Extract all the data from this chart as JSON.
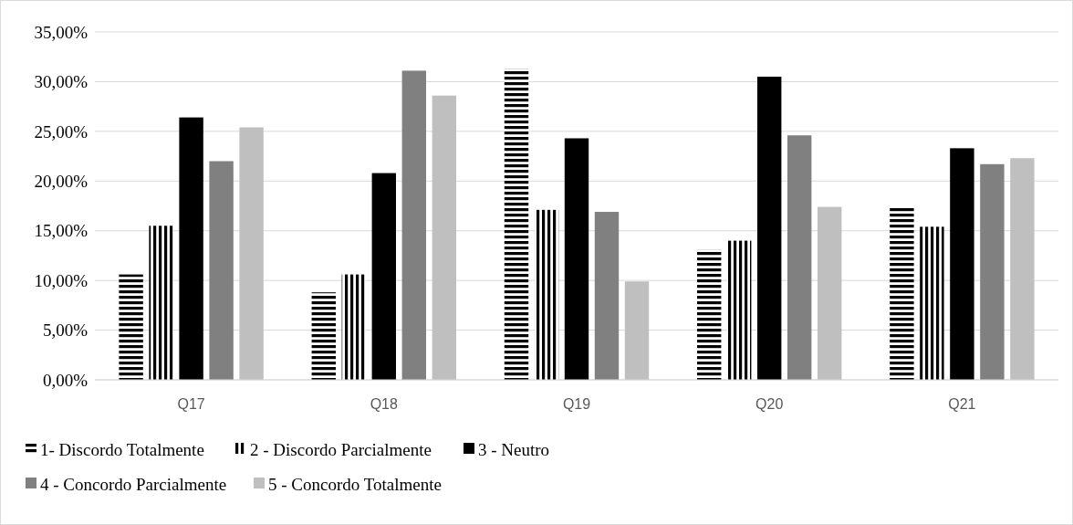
{
  "chart_data": {
    "type": "bar",
    "categories": [
      "Q17",
      "Q18",
      "Q19",
      "Q20",
      "Q21"
    ],
    "series": [
      {
        "name": "1- Discordo Totalmente",
        "color": "#000000",
        "values": [
          10.6,
          8.8,
          31.3,
          13.1,
          17.3
        ]
      },
      {
        "name": "2 - Discordo Parcialmente",
        "color": "#000000",
        "values": [
          15.5,
          10.6,
          17.1,
          14.0,
          15.4
        ]
      },
      {
        "name": "3 - Neutro",
        "color": "#000000",
        "values": [
          26.4,
          20.8,
          24.3,
          30.5,
          23.3
        ]
      },
      {
        "name": "4 - Concordo Parcialmente",
        "color": "#808080",
        "values": [
          22.0,
          31.1,
          16.9,
          24.6,
          21.7
        ]
      },
      {
        "name": "5 - Concordo Totalmente",
        "color": "#bfbfbf",
        "values": [
          25.4,
          28.6,
          9.9,
          17.4,
          22.3
        ]
      }
    ],
    "ylim": [
      0,
      35
    ],
    "yticks": [
      {
        "value": 0,
        "label": "0,00%"
      },
      {
        "value": 5,
        "label": "5,00%"
      },
      {
        "value": 10,
        "label": "10,00%"
      },
      {
        "value": 15,
        "label": "15,00%"
      },
      {
        "value": 20,
        "label": "20,00%"
      },
      {
        "value": 25,
        "label": "25,00%"
      },
      {
        "value": 30,
        "label": "30,00%"
      },
      {
        "value": 35,
        "label": "35,00%"
      }
    ],
    "grid": "y",
    "legend": "bottom"
  }
}
